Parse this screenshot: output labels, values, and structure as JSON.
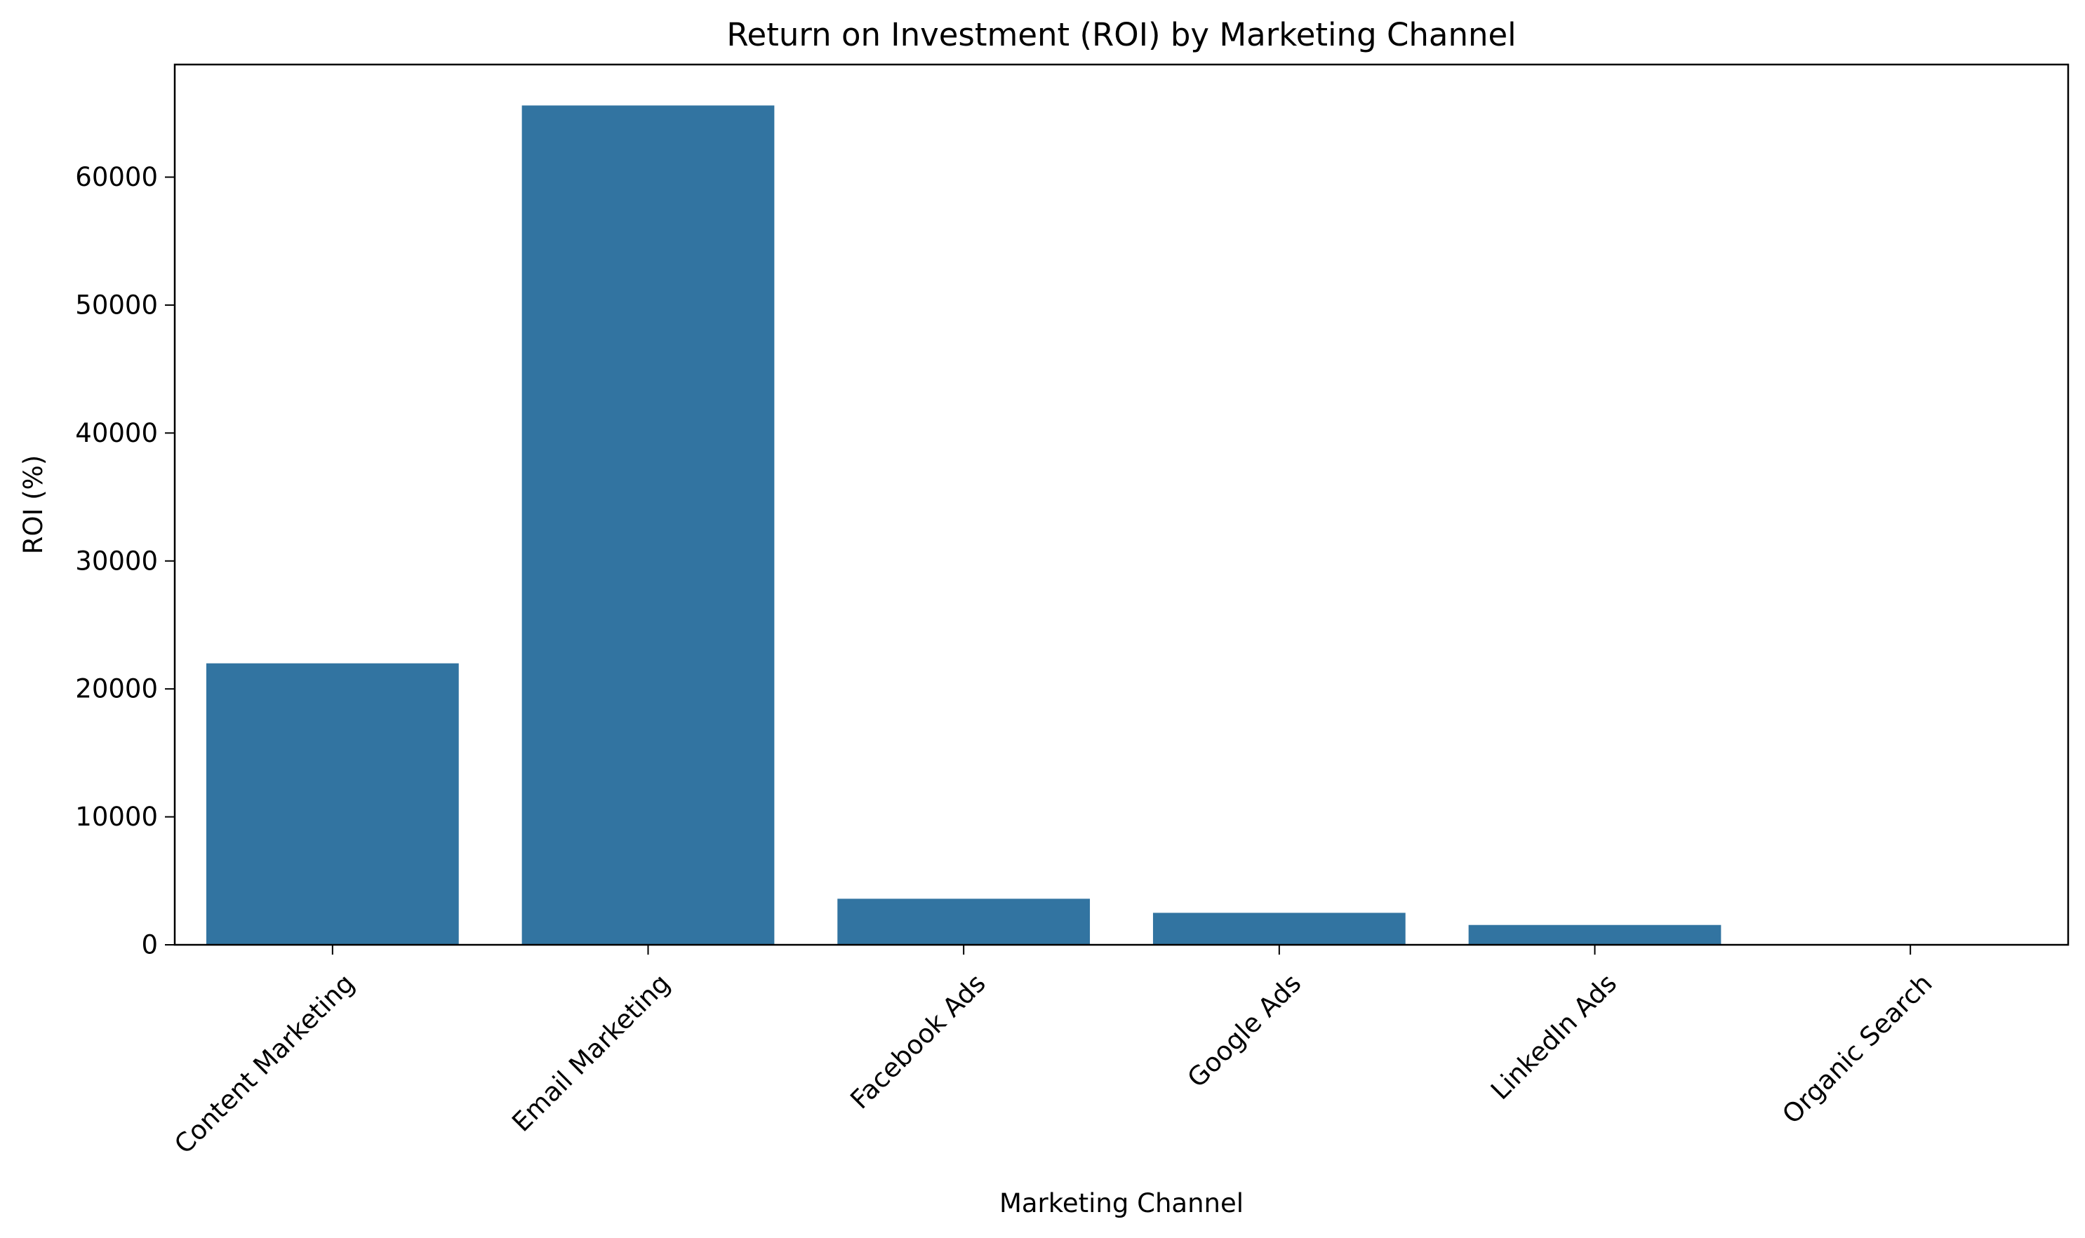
{
  "chart_data": {
    "type": "bar",
    "title": "Return on Investment (ROI) by Marketing Channel",
    "xlabel": "Marketing Channel",
    "ylabel": "ROI (%)",
    "categories": [
      "Content Marketing",
      "Email Marketing",
      "Facebook Ads",
      "Google Ads",
      "LinkedIn Ads",
      "Organic Search"
    ],
    "values": [
      22000,
      65600,
      3600,
      2500,
      1550,
      0
    ],
    "ylim": [
      0,
      68800
    ],
    "yticks": [
      0,
      10000,
      20000,
      30000,
      40000,
      50000,
      60000
    ],
    "bar_color": "#3274a1",
    "grid": false,
    "legend": "none"
  }
}
